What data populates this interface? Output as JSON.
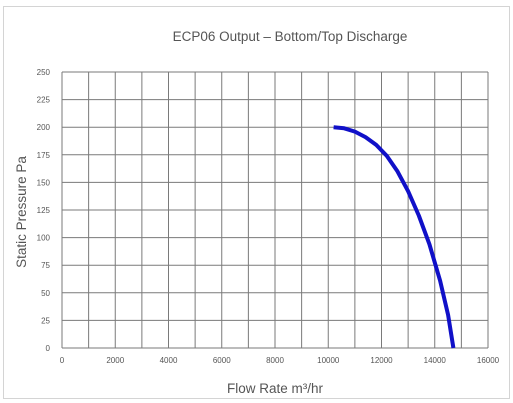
{
  "chart_data": {
    "type": "line",
    "title": "ECP06 Output – Bottom/Top Discharge",
    "xlabel": "Flow Rate m³/hr",
    "ylabel": "Static Pressure Pa",
    "xlim": [
      0,
      16000
    ],
    "ylim": [
      0,
      250
    ],
    "x_ticks": [
      0,
      2000,
      4000,
      6000,
      8000,
      10000,
      12000,
      14000,
      16000
    ],
    "x_tick_labels": [
      "0",
      "2000",
      "4000",
      "6000",
      "8000",
      "10000",
      "12000",
      "14000",
      "16000"
    ],
    "y_ticks": [
      0,
      25,
      50,
      75,
      100,
      125,
      150,
      175,
      200,
      225,
      250
    ],
    "y_tick_labels": [
      "0",
      "25",
      "50",
      "75",
      "100",
      "125",
      "150",
      "175",
      "200",
      "225",
      "250"
    ],
    "grid": true,
    "series": [
      {
        "color": "#1010c8",
        "x": [
          10200,
          10600,
          11000,
          11400,
          11800,
          12200,
          12600,
          13000,
          13400,
          13800,
          14200,
          14500,
          14700
        ],
        "y": [
          200,
          199,
          196,
          191,
          184,
          174,
          160,
          142,
          120,
          94,
          61,
          30,
          0
        ]
      }
    ]
  }
}
